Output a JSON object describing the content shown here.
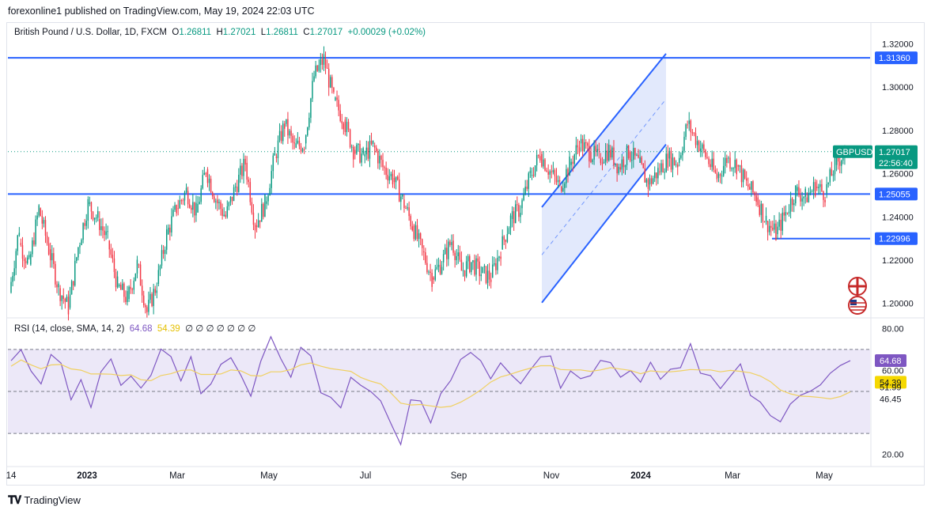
{
  "caption": "forexonline1 published on TradingView.com, May 19, 2024 22:03 UTC",
  "legend": {
    "symbol": "British Pound / U.S. Dollar, 1D, FXCM",
    "o_label": "O",
    "o_value": "1.26811",
    "h_label": "H",
    "h_value": "1.27021",
    "l_label": "L",
    "l_value": "1.26811",
    "c_label": "C",
    "c_value": "1.27017",
    "change": "+0.00029 (+0.02%)"
  },
  "rsi_legend": {
    "label": "RSI (14, close, SMA, 14, 2)",
    "rsi_value": "64.68",
    "sma_value": "54.39",
    "empty_values": "∅ ∅ ∅ ∅ ∅ ∅ ∅"
  },
  "footer": {
    "brand": "TradingView"
  },
  "colors": {
    "up": "#089981",
    "down": "#f23645",
    "hline": "#2962ff",
    "channel_fill": "#d6e0fb",
    "rsi": "#7e57c2",
    "rsi_sma": "#f0d060",
    "rsi_band": "#ece8f8",
    "grid_text": "#131722"
  },
  "chart_data": {
    "type": "candlestick",
    "symbol": "GBPUSD",
    "timeframe": "1D",
    "price_axis": {
      "ticks": [
        "1.32000",
        "1.30000",
        "1.28000",
        "1.26000",
        "1.24000",
        "1.22000",
        "1.20000"
      ],
      "tick_values": [
        1.32,
        1.3,
        1.28,
        1.26,
        1.24,
        1.22,
        1.2
      ],
      "range": [
        1.194,
        1.3235
      ]
    },
    "time_axis": {
      "labels": [
        "14",
        "2023",
        "Mar",
        "May",
        "Jul",
        "Sep",
        "Nov",
        "2024",
        "Mar",
        "May"
      ]
    },
    "horizontal_levels": [
      {
        "label": "1.31360",
        "value": 1.3136
      },
      {
        "label": "1.25055",
        "value": 1.25055
      },
      {
        "label": "1.22996",
        "value": 1.22996
      }
    ],
    "current_price": {
      "symbol_tag": "GBPUSD",
      "price": "1.27017",
      "countdown": "22:56:40"
    },
    "ascending_channel": {
      "lower_start": 1.2003,
      "lower_end": 1.2735,
      "upper_start": 1.2445,
      "upper_end": 1.3155
    },
    "price_path": [
      [
        1.205,
        1.235
      ],
      [
        1.228,
        1.218
      ],
      [
        1.218,
        1.244
      ],
      [
        1.244,
        1.225
      ],
      [
        1.225,
        1.207
      ],
      [
        1.207,
        1.198
      ],
      [
        1.198,
        1.226
      ],
      [
        1.226,
        1.246
      ],
      [
        1.246,
        1.239
      ],
      [
        1.239,
        1.229
      ],
      [
        1.229,
        1.208
      ],
      [
        1.208,
        1.202
      ],
      [
        1.202,
        1.218
      ],
      [
        1.218,
        1.196
      ],
      [
        1.196,
        1.209
      ],
      [
        1.209,
        1.232
      ],
      [
        1.232,
        1.244
      ],
      [
        1.244,
        1.252
      ],
      [
        1.252,
        1.242
      ],
      [
        1.242,
        1.262
      ],
      [
        1.262,
        1.248
      ],
      [
        1.248,
        1.24
      ],
      [
        1.24,
        1.254
      ],
      [
        1.254,
        1.265
      ],
      [
        1.265,
        1.236
      ],
      [
        1.236,
        1.246
      ],
      [
        1.246,
        1.268
      ],
      [
        1.268,
        1.283
      ],
      [
        1.283,
        1.272
      ],
      [
        1.272,
        1.274
      ],
      [
        1.274,
        1.305
      ],
      [
        1.305,
        1.313
      ],
      [
        1.313,
        1.294
      ],
      [
        1.294,
        1.285
      ],
      [
        1.285,
        1.271
      ],
      [
        1.271,
        1.268
      ],
      [
        1.268,
        1.273
      ],
      [
        1.273,
        1.263
      ],
      [
        1.263,
        1.258
      ],
      [
        1.258,
        1.248
      ],
      [
        1.248,
        1.236
      ],
      [
        1.236,
        1.224
      ],
      [
        1.224,
        1.212
      ],
      [
        1.212,
        1.219
      ],
      [
        1.219,
        1.229
      ],
      [
        1.229,
        1.215
      ],
      [
        1.215,
        1.219
      ],
      [
        1.219,
        1.214
      ],
      [
        1.214,
        1.212
      ],
      [
        1.212,
        1.225
      ],
      [
        1.225,
        1.239
      ],
      [
        1.239,
        1.244
      ],
      [
        1.244,
        1.259
      ],
      [
        1.259,
        1.269
      ],
      [
        1.269,
        1.261
      ],
      [
        1.261,
        1.254
      ],
      [
        1.254,
        1.264
      ],
      [
        1.264,
        1.274
      ],
      [
        1.274,
        1.27
      ],
      [
        1.27,
        1.267
      ],
      [
        1.267,
        1.271
      ],
      [
        1.271,
        1.263
      ],
      [
        1.263,
        1.27
      ],
      [
        1.27,
        1.265
      ],
      [
        1.265,
        1.255
      ],
      [
        1.255,
        1.261
      ],
      [
        1.261,
        1.267
      ],
      [
        1.267,
        1.265
      ],
      [
        1.265,
        1.283
      ],
      [
        1.283,
        1.275
      ],
      [
        1.275,
        1.267
      ],
      [
        1.267,
        1.258
      ],
      [
        1.258,
        1.267
      ],
      [
        1.267,
        1.264
      ],
      [
        1.264,
        1.255
      ],
      [
        1.255,
        1.249
      ],
      [
        1.249,
        1.238
      ],
      [
        1.238,
        1.232
      ],
      [
        1.232,
        1.242
      ],
      [
        1.242,
        1.252
      ],
      [
        1.252,
        1.249
      ],
      [
        1.249,
        1.254
      ],
      [
        1.254,
        1.251
      ],
      [
        1.251,
        1.264
      ],
      [
        1.264,
        1.27
      ]
    ],
    "rsi": {
      "axis_ticks": [
        "80.00",
        "60.00",
        "20.00"
      ],
      "axis_tick_values": [
        80,
        60,
        20
      ],
      "overbought": 70,
      "oversold": 30,
      "midline": 50,
      "range": [
        18,
        82
      ],
      "labels": [
        {
          "text": "64.68",
          "value": 64.68,
          "series": "rsi"
        },
        {
          "text": "54.39",
          "value": 54.39,
          "series": "sma"
        },
        {
          "text": "51.99",
          "value": 51.99,
          "series": "plain"
        },
        {
          "text": "46.45",
          "value": 46.45,
          "series": "plain"
        }
      ],
      "rsi_path": [
        62,
        68,
        58,
        55,
        70,
        64,
        48,
        56,
        44,
        62,
        67,
        52,
        58,
        49,
        60,
        70,
        64,
        58,
        64,
        48,
        52,
        60,
        66,
        56,
        50,
        62,
        76,
        64,
        58,
        72,
        68,
        52,
        46,
        44,
        56,
        50,
        48,
        46,
        34,
        24,
        44,
        48,
        38,
        50,
        54,
        66,
        70,
        62,
        58,
        66,
        60,
        52,
        62,
        64,
        66,
        54,
        60,
        58,
        60,
        66,
        62,
        56,
        58,
        52,
        66,
        56,
        58,
        64,
        72,
        60,
        56,
        50,
        58,
        62,
        50,
        44,
        40,
        36,
        44,
        46,
        48,
        54,
        56,
        60,
        64
      ]
    }
  }
}
